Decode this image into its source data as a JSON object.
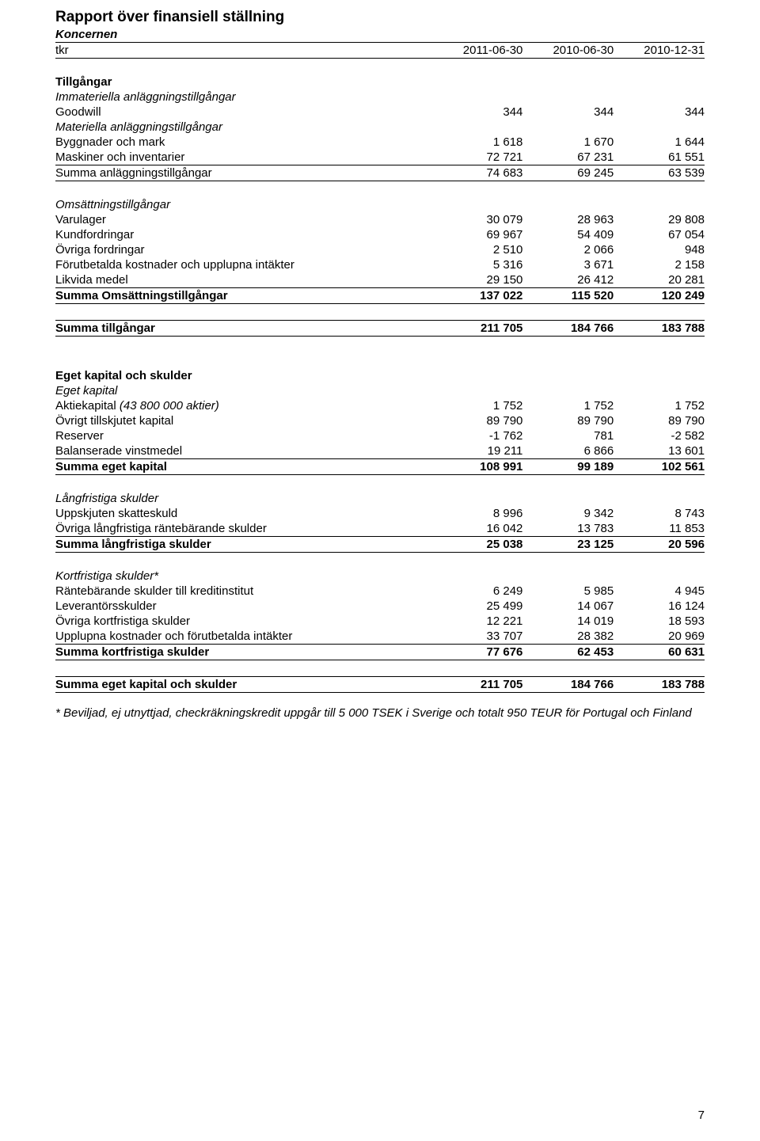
{
  "title": "Rapport över finansiell ställning",
  "subtitle": "Koncernen",
  "columns": {
    "unit": "tkr",
    "c1": "2011-06-30",
    "c2": "2010-06-30",
    "c3": "2010-12-31"
  },
  "sections": {
    "assets": {
      "heading": "Tillgångar",
      "intangible_heading": "Immateriella anläggningstillgångar",
      "goodwill": {
        "label": "Goodwill",
        "v": [
          "344",
          "344",
          "344"
        ]
      },
      "tangible_heading": "Materiella anläggningstillgångar",
      "buildings": {
        "label": "Byggnader och mark",
        "v": [
          "1 618",
          "1 670",
          "1 644"
        ]
      },
      "machinery": {
        "label": "Maskiner och inventarier",
        "v": [
          "72 721",
          "67 231",
          "61 551"
        ]
      },
      "sum_fixed": {
        "label": "Summa anläggningstillgångar",
        "v": [
          "74 683",
          "69 245",
          "63 539"
        ]
      },
      "current_heading": "Omsättningstillgångar",
      "inventory": {
        "label": "Varulager",
        "v": [
          "30 079",
          "28 963",
          "29 808"
        ]
      },
      "receivables": {
        "label": "Kundfordringar",
        "v": [
          "69 967",
          "54 409",
          "67 054"
        ]
      },
      "other_recv": {
        "label": "Övriga fordringar",
        "v": [
          "2 510",
          "2 066",
          "948"
        ]
      },
      "prepaid": {
        "label": "Förutbetalda kostnader och upplupna intäkter",
        "v": [
          "5 316",
          "3 671",
          "2 158"
        ]
      },
      "cash": {
        "label": "Likvida medel",
        "v": [
          "29 150",
          "26 412",
          "20 281"
        ]
      },
      "sum_current": {
        "label": "Summa Omsättningstillgångar",
        "v": [
          "137 022",
          "115 520",
          "120 249"
        ]
      },
      "total": {
        "label": "Summa tillgångar",
        "v": [
          "211 705",
          "184 766",
          "183 788"
        ]
      }
    },
    "equity": {
      "heading": "Eget kapital och skulder",
      "sub": "Eget kapital",
      "share": {
        "label_prefix": "Aktiekapital ",
        "label_paren": "(43 800 000 aktier)",
        "v": [
          "1 752",
          "1 752",
          "1 752"
        ]
      },
      "paidin": {
        "label": "Övrigt tillskjutet kapital",
        "v": [
          "89 790",
          "89 790",
          "89 790"
        ]
      },
      "reserves": {
        "label": "Reserver",
        "v": [
          "-1 762",
          "781",
          "-2 582"
        ]
      },
      "retained": {
        "label": "Balanserade vinstmedel",
        "v": [
          "19 211",
          "6 866",
          "13 601"
        ]
      },
      "sum": {
        "label": "Summa eget kapital",
        "v": [
          "108 991",
          "99 189",
          "102 561"
        ]
      }
    },
    "longterm": {
      "heading": "Långfristiga skulder",
      "deferred_tax": {
        "label": "Uppskjuten skatteskuld",
        "v": [
          "8 996",
          "9 342",
          "8 743"
        ]
      },
      "other": {
        "label": "Övriga långfristiga räntebärande skulder",
        "v": [
          "16 042",
          "13 783",
          "11 853"
        ]
      },
      "sum": {
        "label": "Summa långfristiga skulder",
        "v": [
          "25 038",
          "23 125",
          "20 596"
        ]
      }
    },
    "shortterm": {
      "heading": "Kortfristiga skulder*",
      "credit": {
        "label": "Räntebärande skulder till kreditinstitut",
        "v": [
          "6 249",
          "5 985",
          "4 945"
        ]
      },
      "payables": {
        "label": "Leverantörsskulder",
        "v": [
          "25 499",
          "14 067",
          "16 124"
        ]
      },
      "other": {
        "label": "Övriga kortfristiga skulder",
        "v": [
          "12 221",
          "14 019",
          "18 593"
        ]
      },
      "accrued": {
        "label": "Upplupna kostnader och förutbetalda intäkter",
        "v": [
          "33 707",
          "28 382",
          "20 969"
        ]
      },
      "sum": {
        "label": "Summa kortfristiga skulder",
        "v": [
          "77 676",
          "62 453",
          "60 631"
        ]
      }
    },
    "total_eq_liab": {
      "label": "Summa eget kapital och skulder",
      "v": [
        "211 705",
        "184 766",
        "183 788"
      ]
    }
  },
  "footnote": "* Beviljad, ej utnyttjad, checkräkningskredit uppgår till 5 000 TSEK i Sverige och totalt 950 TEUR för Portugal och Finland",
  "page_number": "7"
}
